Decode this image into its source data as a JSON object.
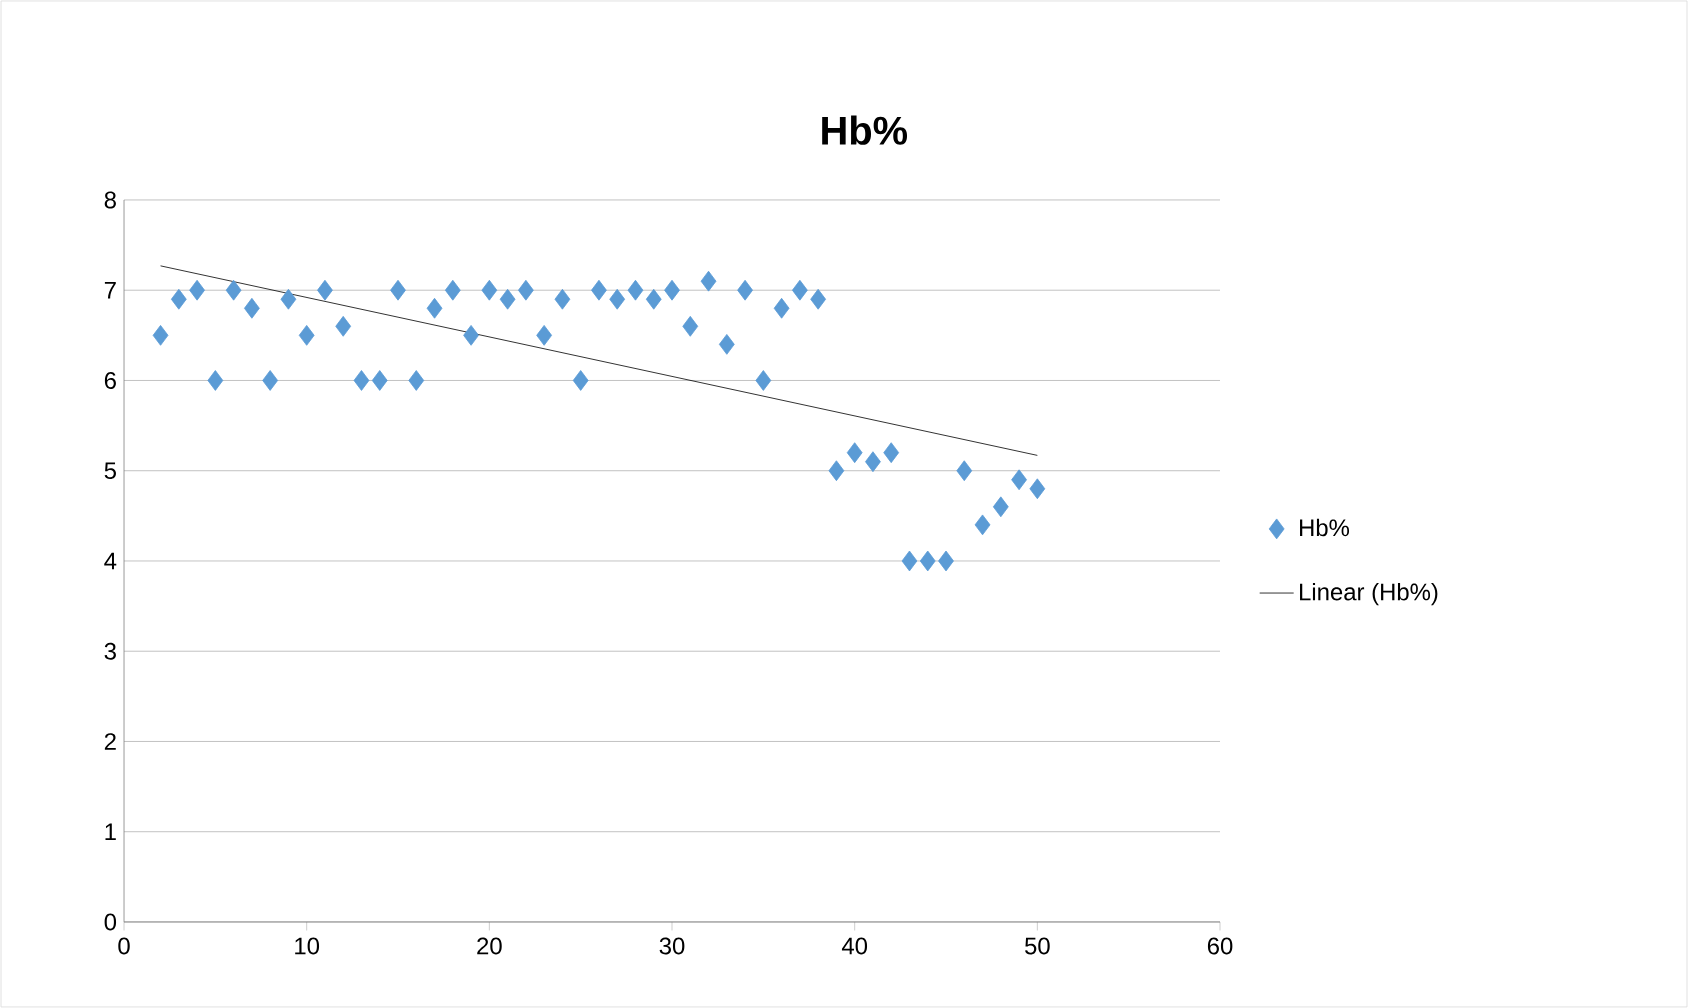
{
  "chart_data": {
    "type": "scatter",
    "title": "Hb%",
    "xlim": [
      0,
      60
    ],
    "xticks": [
      0,
      10,
      20,
      30,
      40,
      50,
      60
    ],
    "ylim": [
      0,
      8
    ],
    "yticks": [
      0,
      1,
      2,
      3,
      4,
      5,
      6,
      7,
      8
    ],
    "grid": "y",
    "legend": "right",
    "series": [
      {
        "name": "Hb%",
        "marker": "diamond",
        "color": "#5b9bd5",
        "x": [
          2,
          3,
          4,
          5,
          6,
          7,
          8,
          9,
          10,
          11,
          12,
          13,
          14,
          15,
          16,
          17,
          18,
          19,
          20,
          21,
          22,
          23,
          24,
          25,
          26,
          27,
          28,
          29,
          30,
          31,
          32,
          33,
          34,
          35,
          36,
          37,
          38,
          39,
          40,
          41,
          42,
          43,
          44,
          45,
          46,
          47,
          48,
          49,
          50
        ],
        "values": [
          6.5,
          6.9,
          7.0,
          6.0,
          7.0,
          6.8,
          6.0,
          6.9,
          6.5,
          7.0,
          6.6,
          6.0,
          6.0,
          7.0,
          6.0,
          6.8,
          7.0,
          6.5,
          7.0,
          6.9,
          7.0,
          6.5,
          6.9,
          6.0,
          7.0,
          6.9,
          7.0,
          6.9,
          7.0,
          6.6,
          7.1,
          6.4,
          7.0,
          6.0,
          6.8,
          7.0,
          6.9,
          5.0,
          5.2,
          5.1,
          5.2,
          4.0,
          4.0,
          4.0,
          5.0,
          4.4,
          4.6,
          4.9,
          4.8
        ]
      },
      {
        "name": "Linear (Hb%)",
        "type": "line",
        "marker": "none",
        "color": "#000000",
        "x": [
          2,
          50
        ],
        "values": [
          7.27,
          5.17
        ]
      }
    ]
  }
}
